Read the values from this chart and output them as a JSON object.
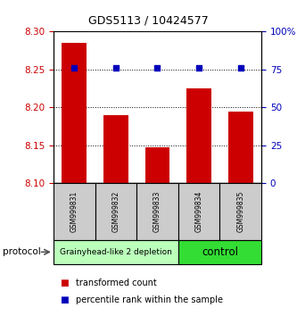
{
  "title": "GDS5113 / 10424577",
  "samples": [
    "GSM999831",
    "GSM999832",
    "GSM999833",
    "GSM999834",
    "GSM999835"
  ],
  "bar_values": [
    8.285,
    8.19,
    8.147,
    8.225,
    8.195
  ],
  "percentile_values": [
    76,
    76,
    76,
    76,
    76
  ],
  "ylim_left": [
    8.1,
    8.3
  ],
  "ylim_right": [
    0,
    100
  ],
  "yticks_left": [
    8.1,
    8.15,
    8.2,
    8.25,
    8.3
  ],
  "yticks_right": [
    0,
    25,
    50,
    75,
    100
  ],
  "ytick_labels_right": [
    "0",
    "25",
    "50",
    "75",
    "100%"
  ],
  "bar_color": "#cc0000",
  "dot_color": "#0000bb",
  "bar_width": 0.6,
  "groups": [
    {
      "label": "Grainyhead-like 2 depletion",
      "start": 0,
      "end": 3,
      "color": "#bbffbb"
    },
    {
      "label": "control",
      "start": 3,
      "end": 5,
      "color": "#33dd33"
    }
  ],
  "protocol_label": "protocol",
  "legend_items": [
    {
      "color": "#cc0000",
      "label": "transformed count"
    },
    {
      "color": "#0000bb",
      "label": "percentile rank within the sample"
    }
  ],
  "background_color": "#ffffff",
  "tick_label_color_left": "#cc0000",
  "tick_label_color_right": "#0000bb",
  "sample_box_color": "#cccccc",
  "title_fontsize": 9,
  "axis_fontsize": 7.5,
  "legend_fontsize": 7,
  "sample_fontsize": 5.5,
  "group_fontsize_small": 6.5,
  "group_fontsize_large": 8.5
}
